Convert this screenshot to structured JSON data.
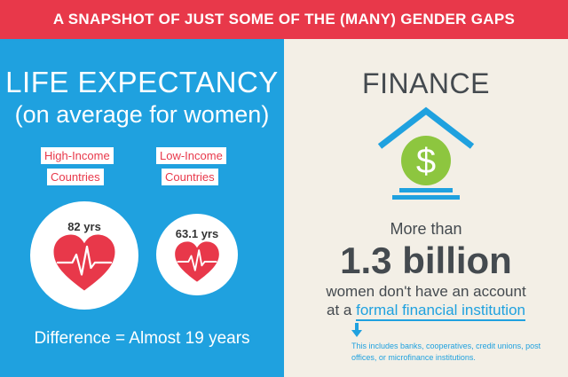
{
  "banner": {
    "title": "A SNAPSHOT OF JUST SOME OF THE (MANY) GENDER GAPS"
  },
  "life": {
    "title": "LIFE EXPECTANCY",
    "subtitle": "(on average for women)",
    "high_income": {
      "line1": "High-Income",
      "line2": "Countries",
      "value": "82 yrs"
    },
    "low_income": {
      "line1": "Low-Income",
      "line2": "Countries",
      "value": "63.1 yrs"
    },
    "difference": "Difference = Almost 19 years"
  },
  "finance": {
    "title": "FINANCE",
    "more_than": "More than",
    "big_number": "1.3 billion",
    "line1": "women don't have an account",
    "line2_prefix": "at a ",
    "line2_highlight": "formal financial institution",
    "note": "This includes banks, cooperatives, credit unions, post offices, or microfinance institutions."
  },
  "colors": {
    "banner": "#e8384a",
    "left_panel": "#1fa1df",
    "right_panel": "#f3efe6",
    "heart": "#e8384a",
    "dollar": "#8dc63f",
    "text_dark": "#444a4f"
  },
  "icons": {
    "heart": "heart-pulse-icon",
    "house": "house-dollar-icon",
    "arrow": "arrow-down-icon"
  }
}
